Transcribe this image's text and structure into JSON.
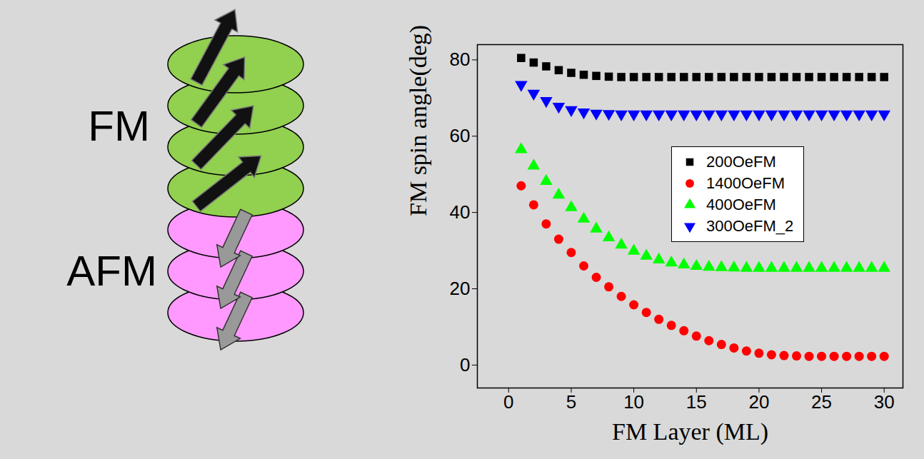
{
  "chart_data": {
    "type": "scatter",
    "xlabel": "FM Layer (ML)",
    "ylabel": "FM spin angle(deg)",
    "x": [
      1,
      2,
      3,
      4,
      5,
      6,
      7,
      8,
      9,
      10,
      11,
      12,
      13,
      14,
      15,
      16,
      17,
      18,
      19,
      20,
      21,
      22,
      23,
      24,
      25,
      26,
      27,
      28,
      29,
      30
    ],
    "series": [
      {
        "name": "200OeFM",
        "color": "#000000",
        "marker": "square",
        "values": [
          80.5,
          79.3,
          78.3,
          77.3,
          76.6,
          76.1,
          75.8,
          75.6,
          75.5,
          75.5,
          75.5,
          75.5,
          75.5,
          75.5,
          75.5,
          75.5,
          75.5,
          75.5,
          75.5,
          75.5,
          75.5,
          75.5,
          75.5,
          75.5,
          75.5,
          75.5,
          75.5,
          75.5,
          75.5,
          75.5
        ]
      },
      {
        "name": "1400OeFM",
        "color": "#ff0000",
        "marker": "circle",
        "values": [
          47,
          42,
          37,
          33,
          29.5,
          26,
          23,
          20.5,
          18,
          15.8,
          13.8,
          12,
          10.4,
          9,
          7.6,
          6.4,
          5.4,
          4.5,
          3.7,
          3.1,
          2.7,
          2.5,
          2.4,
          2.3,
          2.3,
          2.3,
          2.3,
          2.3,
          2.3,
          2.3
        ]
      },
      {
        "name": "400OeFM",
        "color": "#00ff00",
        "marker": "triangle-up",
        "values": [
          56.5,
          52.2,
          48.2,
          44.6,
          41.3,
          38.3,
          35.7,
          33.4,
          31.5,
          29.9,
          28.6,
          27.6,
          26.8,
          26.3,
          25.9,
          25.7,
          25.6,
          25.5,
          25.4,
          25.4,
          25.4,
          25.4,
          25.4,
          25.4,
          25.4,
          25.4,
          25.4,
          25.4,
          25.4,
          25.4
        ]
      },
      {
        "name": "300OeFM_2",
        "color": "#0000ff",
        "marker": "triangle-down",
        "values": [
          73.5,
          71.2,
          69.3,
          67.8,
          66.9,
          66.3,
          66.0,
          65.9,
          65.8,
          65.8,
          65.8,
          65.8,
          65.8,
          65.8,
          65.8,
          65.8,
          65.8,
          65.8,
          65.8,
          65.8,
          65.8,
          65.8,
          65.8,
          65.8,
          65.8,
          65.8,
          65.8,
          65.8,
          65.8,
          65.8
        ]
      }
    ],
    "xlim": [
      -2.5,
      31.5
    ],
    "xticks": [
      0,
      5,
      10,
      15,
      20,
      25,
      30
    ],
    "ylim": [
      -6,
      84
    ],
    "yticks": [
      0,
      20,
      40,
      60,
      80
    ],
    "legend": "right"
  },
  "diagram": {
    "stacks": [
      {
        "label": "FM",
        "layers": 4
      },
      {
        "label": "AFM",
        "layers": 3
      }
    ]
  }
}
